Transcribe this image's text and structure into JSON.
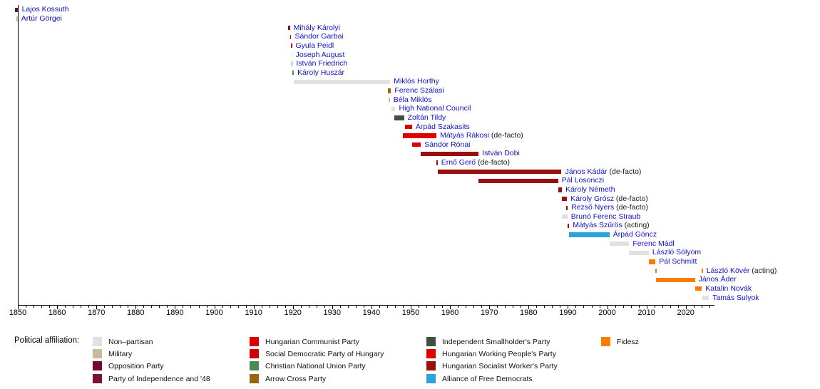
{
  "chart_data": {
    "type": "timeline",
    "title": "",
    "axis": {
      "unit": "year",
      "x_min": 1850,
      "x_max": 2027.3,
      "major_ticks": [
        1850,
        1860,
        1870,
        1880,
        1890,
        1900,
        1910,
        1920,
        1930,
        1940,
        1950,
        1960,
        1970,
        1980,
        1990,
        2000,
        2010,
        2020
      ],
      "minor_tick_interval": 2,
      "grid": false
    },
    "affiliations": {
      "non_partisan": {
        "label": "Non–partisan",
        "color": "#e1e1e1"
      },
      "military": {
        "label": "Military",
        "color": "#c9ba99"
      },
      "opposition_party": {
        "label": "Opposition Party",
        "color": "#75092f"
      },
      "party_of_independence": {
        "label": "Party of Independence and '48",
        "color": "#7c1334"
      },
      "hungarian_communist": {
        "label": "Hungarian Communist Party",
        "color": "#de0000"
      },
      "social_democratic": {
        "label": "Social Democratic Party of Hungary",
        "color": "#d10000"
      },
      "christian_national": {
        "label": "Christian National Union Party",
        "color": "#4e8a57"
      },
      "arrow_cross": {
        "label": "Arrow Cross Party",
        "color": "#9a6410"
      },
      "independent_smallholders": {
        "label": "Independent Smallholder's Party",
        "color": "#40503f"
      },
      "hungarian_working_peoples": {
        "label": "Hungarian Working People's Party",
        "color": "#e00000"
      },
      "hungarian_socialist_workers": {
        "label": "Hungarian Socialist Worker's Party",
        "color": "#9a0e0e"
      },
      "alliance_free_democrats": {
        "label": "Alliance of Free Democrats",
        "color": "#2ba3db"
      },
      "fidesz": {
        "label": "Fidesz",
        "color": "#fa7d00"
      }
    },
    "leaders": [
      {
        "name": "Lajos Kossuth",
        "suffix": "",
        "affiliation": "opposition_party",
        "terms": [
          [
            1849.2,
            1850.1
          ]
        ]
      },
      {
        "name": "Artúr Görgei",
        "suffix": "",
        "affiliation": "military",
        "terms": [
          [
            1849.6,
            1849.95
          ]
        ]
      },
      {
        "name": "Mihály Károlyi",
        "suffix": "",
        "affiliation": "party_of_independence",
        "terms": [
          [
            1918.85,
            1919.25
          ]
        ]
      },
      {
        "name": "Sándor Garbai",
        "suffix": "",
        "affiliation": "social_democratic",
        "terms": [
          [
            1919.25,
            1919.6
          ]
        ]
      },
      {
        "name": "Gyula Peidl",
        "suffix": "",
        "affiliation": "social_democratic",
        "terms": [
          [
            1919.58,
            1919.78
          ]
        ]
      },
      {
        "name": "Joseph August",
        "suffix": "",
        "affiliation": "non_partisan",
        "terms": [
          [
            1919.6,
            1919.8
          ]
        ]
      },
      {
        "name": "István Friedrich",
        "suffix": "",
        "affiliation": "christian_national",
        "terms": [
          [
            1919.6,
            1919.95
          ]
        ]
      },
      {
        "name": "Károly Huszár",
        "suffix": "",
        "affiliation": "christian_national",
        "terms": [
          [
            1919.9,
            1920.25
          ]
        ]
      },
      {
        "name": "Miklós Horthy",
        "suffix": "",
        "affiliation": "non_partisan",
        "terms": [
          [
            1920.25,
            1944.8
          ]
        ]
      },
      {
        "name": "Ferenc Szálasi",
        "suffix": "",
        "affiliation": "arrow_cross",
        "terms": [
          [
            1944.2,
            1945.0
          ]
        ]
      },
      {
        "name": "Béla Miklós",
        "suffix": "",
        "affiliation": "military",
        "terms": [
          [
            1944.4,
            1944.7
          ]
        ]
      },
      {
        "name": "High National Council",
        "suffix": "",
        "affiliation": "non_partisan",
        "terms": [
          [
            1945.05,
            1946.1
          ]
        ]
      },
      {
        "name": "Zoltán Tildy",
        "suffix": "",
        "affiliation": "independent_smallholders",
        "terms": [
          [
            1945.8,
            1948.3
          ]
        ]
      },
      {
        "name": "Árpád Szakasits",
        "suffix": "",
        "affiliation": "social_democratic",
        "terms": [
          [
            1948.6,
            1950.35
          ]
        ]
      },
      {
        "name": "Mátyás Rákosi",
        "suffix": "(de-facto)",
        "affiliation": "hungarian_working_peoples",
        "terms": [
          [
            1948.0,
            1956.55
          ]
        ]
      },
      {
        "name": "Sándor Rónai",
        "suffix": "",
        "affiliation": "hungarian_working_peoples",
        "terms": [
          [
            1950.35,
            1952.6
          ]
        ]
      },
      {
        "name": "István Dobi",
        "suffix": "",
        "affiliation": "hungarian_socialist_workers",
        "terms": [
          [
            1952.6,
            1967.3
          ]
        ]
      },
      {
        "name": "Ernő Gerő",
        "suffix": "(de-facto)",
        "affiliation": "hungarian_socialist_workers",
        "terms": [
          [
            1956.5,
            1956.85
          ]
        ]
      },
      {
        "name": "János Kádár",
        "suffix": "(de-facto)",
        "affiliation": "hungarian_socialist_workers",
        "terms": [
          [
            1956.85,
            1988.4
          ]
        ]
      },
      {
        "name": "Pál Losonczi",
        "suffix": "",
        "affiliation": "hungarian_socialist_workers",
        "terms": [
          [
            1967.3,
            1987.5
          ]
        ]
      },
      {
        "name": "Károly Németh",
        "suffix": "",
        "affiliation": "hungarian_socialist_workers",
        "terms": [
          [
            1987.5,
            1988.5
          ]
        ]
      },
      {
        "name": "Károly Grósz",
        "suffix": "(de-facto)",
        "affiliation": "hungarian_socialist_workers",
        "terms": [
          [
            1988.4,
            1989.8
          ]
        ]
      },
      {
        "name": "Rezső Nyers",
        "suffix": "(de-facto)",
        "affiliation": "hungarian_socialist_workers",
        "terms": [
          [
            1989.6,
            1989.95
          ]
        ]
      },
      {
        "name": "Brunó Ferenc Straub",
        "suffix": "",
        "affiliation": "non_partisan",
        "terms": [
          [
            1988.5,
            1989.9
          ]
        ]
      },
      {
        "name": "Mátyás Szűrös",
        "suffix": "(acting)",
        "affiliation": "hungarian_socialist_workers",
        "terms": [
          [
            1989.9,
            1990.35
          ]
        ]
      },
      {
        "name": "Árpád Göncz",
        "suffix": "",
        "affiliation": "alliance_free_democrats",
        "terms": [
          [
            1990.35,
            2000.6
          ]
        ]
      },
      {
        "name": "Ferenc Mádl",
        "suffix": "",
        "affiliation": "non_partisan",
        "terms": [
          [
            2000.6,
            2005.6
          ]
        ]
      },
      {
        "name": "László Sólyom",
        "suffix": "",
        "affiliation": "non_partisan",
        "terms": [
          [
            2005.6,
            2010.6
          ]
        ]
      },
      {
        "name": "Pál Schmitt",
        "suffix": "",
        "affiliation": "fidesz",
        "terms": [
          [
            2010.6,
            2012.3
          ]
        ]
      },
      {
        "name": "László Kövér",
        "suffix": "(acting)",
        "affiliation": "fidesz",
        "terms": [
          [
            2012.3,
            2012.6
          ],
          [
            2024.1,
            2024.35
          ]
        ]
      },
      {
        "name": "János Áder",
        "suffix": "",
        "affiliation": "fidesz",
        "terms": [
          [
            2012.35,
            2022.35
          ]
        ]
      },
      {
        "name": "Katalin Novák",
        "suffix": "",
        "affiliation": "fidesz",
        "terms": [
          [
            2022.35,
            2024.1
          ]
        ]
      },
      {
        "name": "Tamás Sulyok",
        "suffix": "",
        "affiliation": "non_partisan",
        "terms": [
          [
            2024.2,
            2025.9
          ]
        ]
      }
    ]
  },
  "legend": {
    "title": "Political affiliation:",
    "columns": [
      [
        "non_partisan",
        "military",
        "opposition_party",
        "party_of_independence"
      ],
      [
        "hungarian_communist",
        "social_democratic",
        "christian_national",
        "arrow_cross"
      ],
      [
        "independent_smallholders",
        "hungarian_working_peoples",
        "hungarian_socialist_workers",
        "alliance_free_democrats"
      ],
      [
        "fidesz"
      ]
    ]
  }
}
